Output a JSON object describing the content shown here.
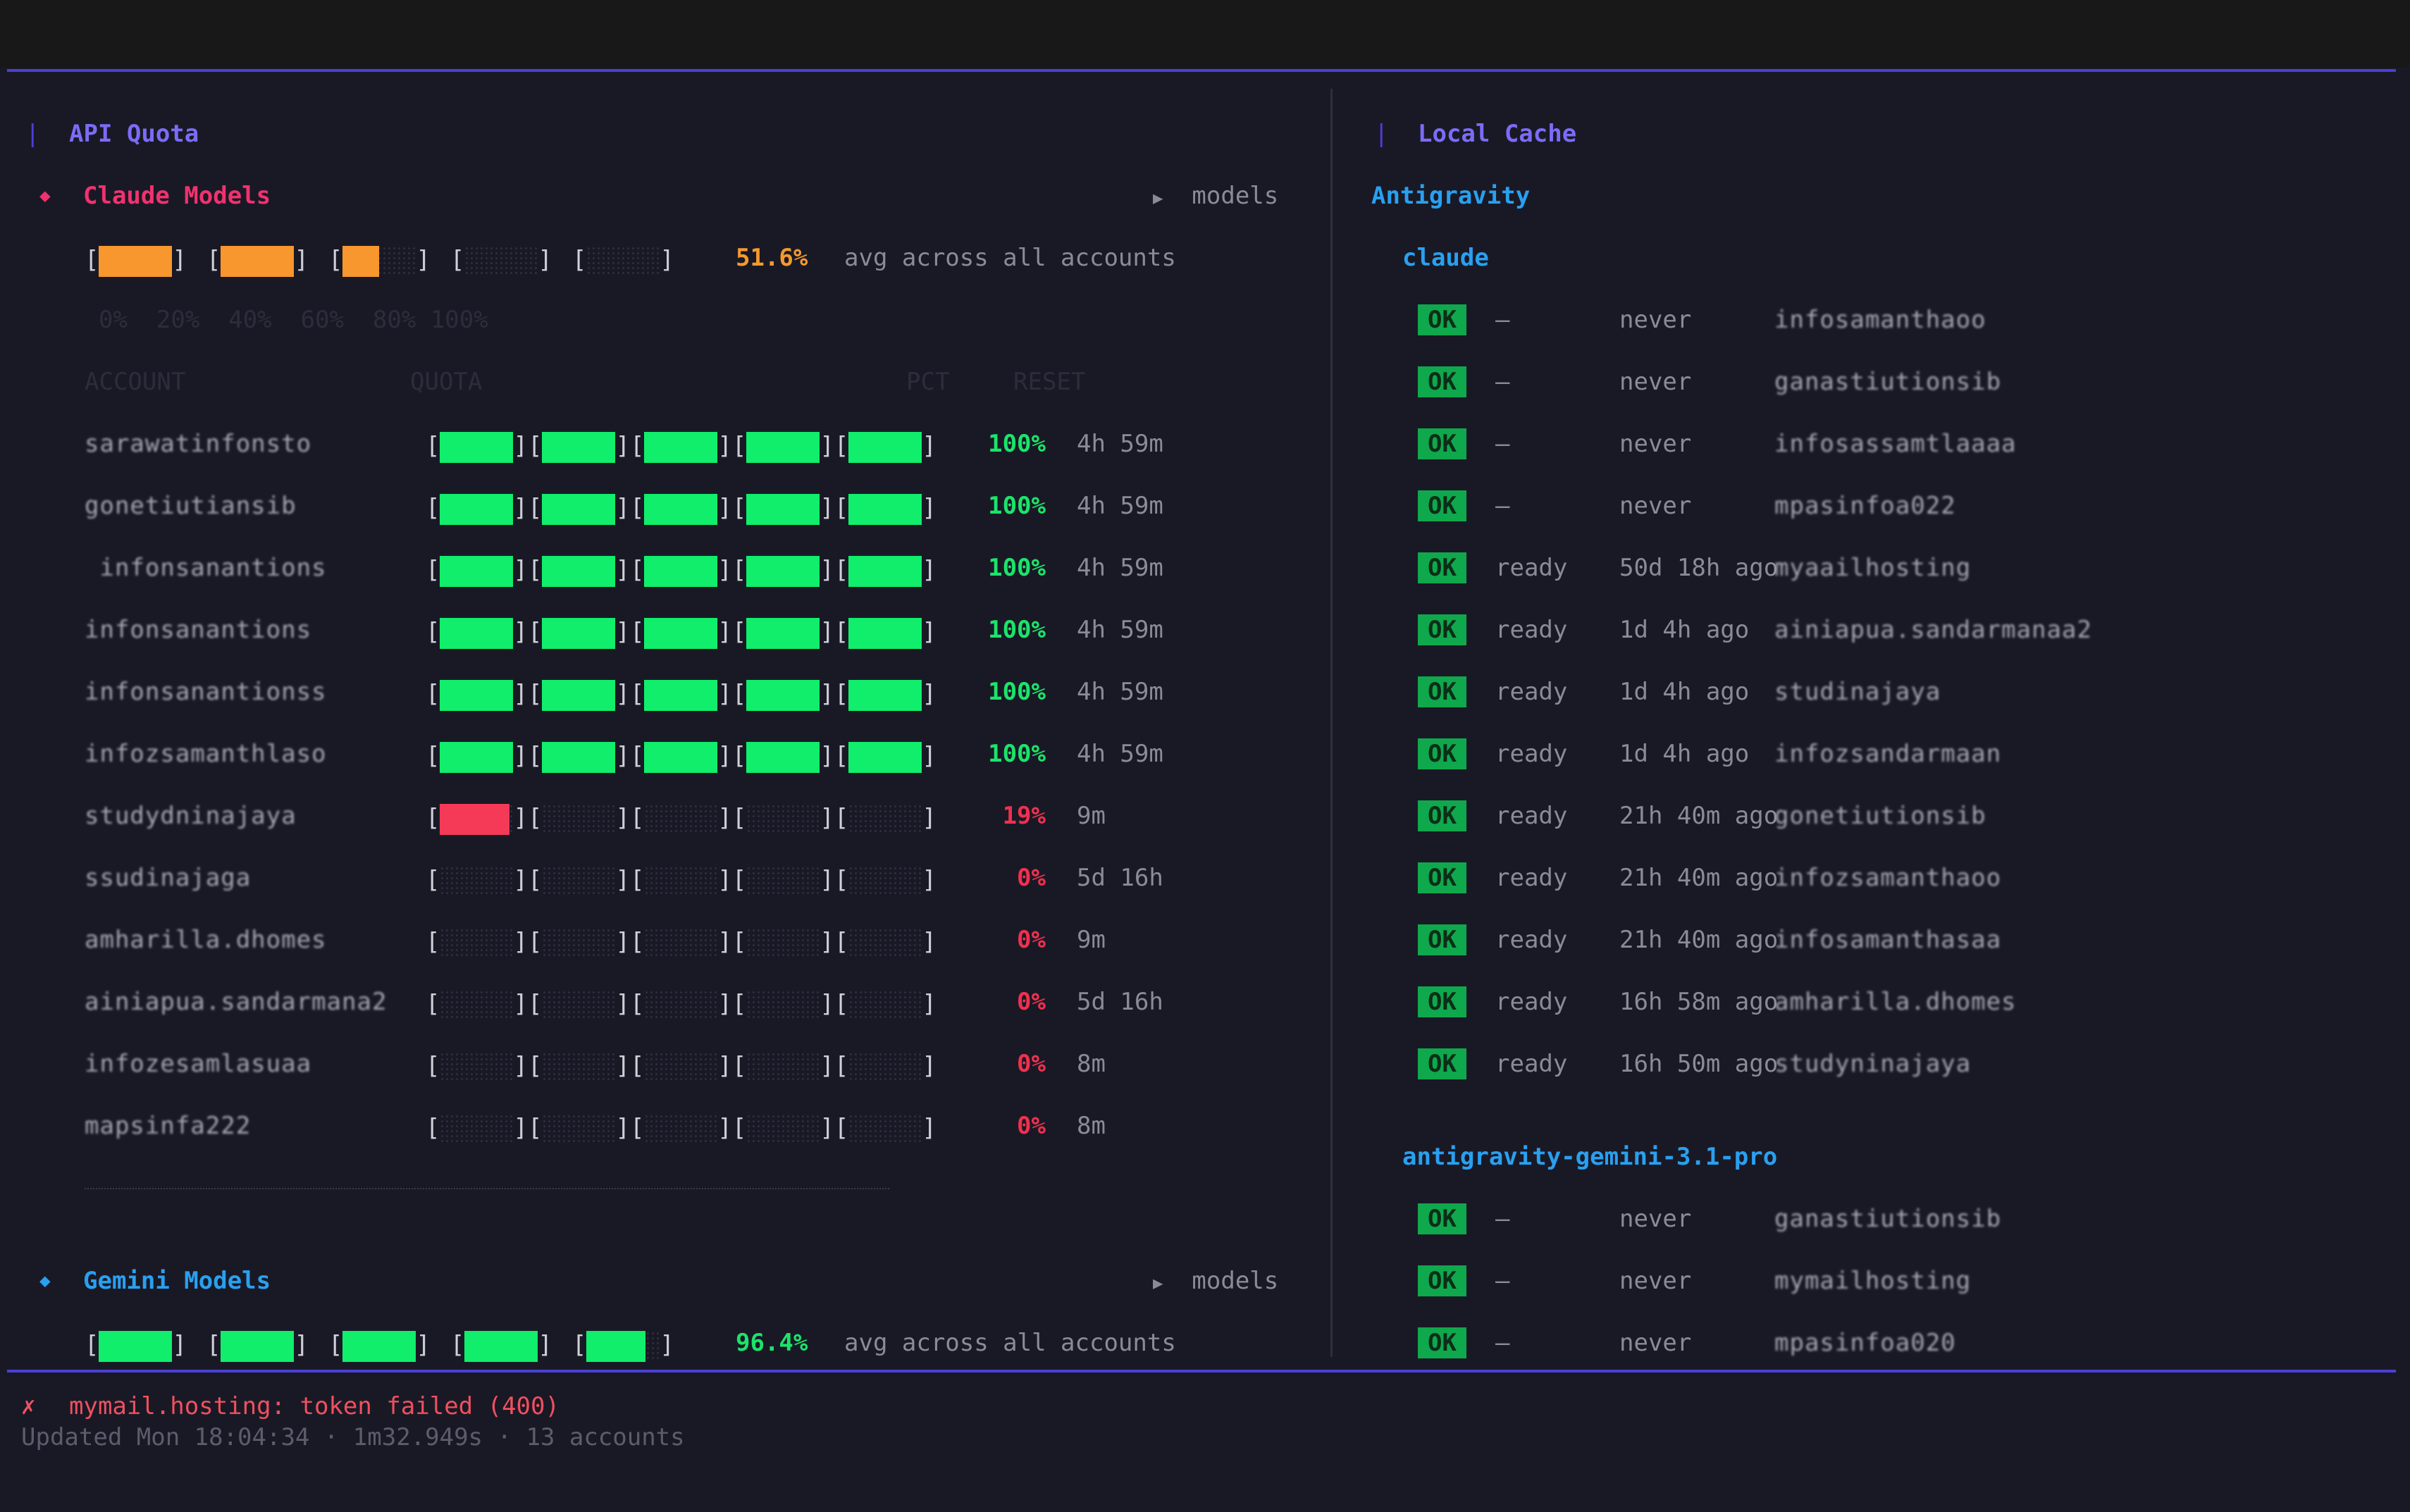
{
  "colors": {
    "accent": "#4b3fd6",
    "green": "#10ee6c",
    "red": "#f53a58",
    "orange": "#f8972e",
    "pink": "#f0326e",
    "blue": "#29a0f0",
    "ok_bg": "#0fa84c"
  },
  "left": {
    "title": "API Quota",
    "claude": {
      "icon": "diamond-icon",
      "title": "Claude Models",
      "models_label": "models",
      "avg_fills": [
        1,
        1,
        0.5,
        0,
        0
      ],
      "avg_pct": "51.6%",
      "avg_text": "avg across all accounts",
      "scale": "0%  20%  40%  60%  80% 100%",
      "col_account": "ACCOUNT",
      "col_quota": "QUOTA",
      "col_pct": "PCT",
      "col_reset": "RESET",
      "rows": [
        {
          "account": "sarawatinfonsto",
          "fills": [
            1,
            1,
            1,
            1,
            1
          ],
          "color": "g",
          "pct": "100%",
          "reset": "4h 59m"
        },
        {
          "account": "gonetiutiansib",
          "fills": [
            1,
            1,
            1,
            1,
            1
          ],
          "color": "g",
          "pct": "100%",
          "reset": "4h 59m"
        },
        {
          "account": " infonsanantions",
          "fills": [
            1,
            1,
            1,
            1,
            1
          ],
          "color": "g",
          "pct": "100%",
          "reset": "4h 59m"
        },
        {
          "account": "infonsanantions",
          "fills": [
            1,
            1,
            1,
            1,
            1
          ],
          "color": "g",
          "pct": "100%",
          "reset": "4h 59m"
        },
        {
          "account": "infonsanantionss",
          "fills": [
            1,
            1,
            1,
            1,
            1
          ],
          "color": "g",
          "pct": "100%",
          "reset": "4h 59m"
        },
        {
          "account": "infozsamanthlaso",
          "fills": [
            1,
            1,
            1,
            1,
            1
          ],
          "color": "g",
          "pct": "100%",
          "reset": "4h 59m"
        },
        {
          "account": "studydninajaya",
          "fills": [
            0.95,
            0,
            0,
            0,
            0
          ],
          "color": "r",
          "pct": "19%",
          "reset": "9m"
        },
        {
          "account": "ssudinajaga",
          "fills": [
            0,
            0,
            0,
            0,
            0
          ],
          "color": "r",
          "pct": "0%",
          "reset": "5d 16h"
        },
        {
          "account": "amharilla.dhomes",
          "fills": [
            0,
            0,
            0,
            0,
            0
          ],
          "color": "r",
          "pct": "0%",
          "reset": "9m"
        },
        {
          "account": "ainiapua.sandarmana2",
          "fills": [
            0,
            0,
            0,
            0,
            0
          ],
          "color": "r",
          "pct": "0%",
          "reset": "5d 16h"
        },
        {
          "account": "infozesamlasuaa",
          "fills": [
            0,
            0,
            0,
            0,
            0
          ],
          "color": "r",
          "pct": "0%",
          "reset": "8m"
        },
        {
          "account": "mapsinfa222",
          "fills": [
            0,
            0,
            0,
            0,
            0
          ],
          "color": "r",
          "pct": "0%",
          "reset": "8m"
        }
      ]
    },
    "gemini": {
      "icon": "diamond-icon",
      "title": "Gemini Models",
      "models_label": "models",
      "avg_fills": [
        1,
        1,
        1,
        1,
        0.8
      ],
      "avg_pct": "96.4%",
      "avg_text": "avg across all accounts"
    }
  },
  "right": {
    "title": "Local Cache",
    "provider": "Antigravity",
    "groups": [
      {
        "name": "claude",
        "items": [
          {
            "status": "OK",
            "state": "–",
            "time": "never",
            "account": "infosamanthaoo"
          },
          {
            "status": "OK",
            "state": "–",
            "time": "never",
            "account": "ganastiutionsib"
          },
          {
            "status": "OK",
            "state": "–",
            "time": "never",
            "account": "infosassamtlaaaa"
          },
          {
            "status": "OK",
            "state": "–",
            "time": "never",
            "account": "mpasinfoa022"
          },
          {
            "status": "OK",
            "state": "ready",
            "time": "50d 18h ago",
            "account": "myaailhosting"
          },
          {
            "status": "OK",
            "state": "ready",
            "time": "1d 4h ago",
            "account": "ainiapua.sandarmanaa2"
          },
          {
            "status": "OK",
            "state": "ready",
            "time": "1d 4h ago",
            "account": "studinajaya"
          },
          {
            "status": "OK",
            "state": "ready",
            "time": "1d 4h ago",
            "account": "infozsandarmaan"
          },
          {
            "status": "OK",
            "state": "ready",
            "time": "21h 40m ago",
            "account": "gonetiutionsib"
          },
          {
            "status": "OK",
            "state": "ready",
            "time": "21h 40m ago",
            "account": "infozsamanthaoo"
          },
          {
            "status": "OK",
            "state": "ready",
            "time": "21h 40m ago",
            "account": "infosamanthasaa"
          },
          {
            "status": "OK",
            "state": "ready",
            "time": "16h 58m ago",
            "account": "amharilla.dhomes"
          },
          {
            "status": "OK",
            "state": "ready",
            "time": "16h 50m ago",
            "account": "studyninajaya"
          }
        ]
      },
      {
        "name": "antigravity-gemini-3.1-pro",
        "items": [
          {
            "status": "OK",
            "state": "–",
            "time": "never",
            "account": "ganastiutionsib"
          },
          {
            "status": "OK",
            "state": "–",
            "time": "never",
            "account": "mymailhosting"
          },
          {
            "status": "OK",
            "state": "–",
            "time": "never",
            "account": "mpasinfoa020"
          }
        ]
      }
    ]
  },
  "footer": {
    "error_icon": "✗",
    "error_text": "mymail.hosting: token failed (400)",
    "updated_text": "Updated Mon 18:04:34 · 1m32.949s · 13 accounts"
  }
}
